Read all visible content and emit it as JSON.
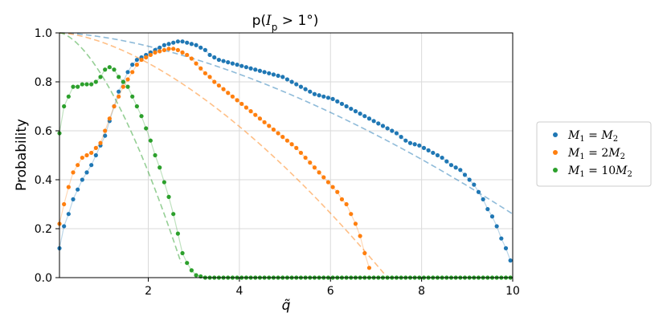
{
  "chart_data": {
    "type": "scatter",
    "title": "p(I_p > 1°)",
    "title_parts": {
      "main": "p(",
      "italic": "I",
      "sub": "p",
      "rest": " > 1°)"
    },
    "xlabel": "q̃",
    "ylabel": "Probability",
    "xlim": [
      0.05,
      10
    ],
    "ylim": [
      0,
      1
    ],
    "x_ticks": [
      2,
      4,
      6,
      8,
      10
    ],
    "y_ticks": [
      0.0,
      0.2,
      0.4,
      0.6,
      0.8,
      1.0
    ],
    "x_tick_labels": [
      "2",
      "4",
      "6",
      "8",
      "10"
    ],
    "y_tick_labels": [
      "0.0",
      "0.2",
      "0.4",
      "0.6",
      "0.8",
      "1.0"
    ],
    "grid": true,
    "legend_position": "outside-right",
    "series": [
      {
        "name": "M₁ = M₂",
        "legend_label": {
          "a": "M",
          "a_sub": "1",
          "eq": " = ",
          "b": "M",
          "b_sub": "2"
        },
        "color": "#1f77b4",
        "x": [
          0.05,
          0.15,
          0.25,
          0.35,
          0.45,
          0.55,
          0.65,
          0.75,
          0.85,
          0.95,
          1.05,
          1.15,
          1.25,
          1.35,
          1.45,
          1.55,
          1.65,
          1.75,
          1.85,
          1.95,
          2.05,
          2.15,
          2.25,
          2.35,
          2.45,
          2.55,
          2.65,
          2.75,
          2.85,
          2.95,
          3.05,
          3.15,
          3.25,
          3.35,
          3.45,
          3.55,
          3.65,
          3.75,
          3.85,
          3.95,
          4.05,
          4.15,
          4.25,
          4.35,
          4.45,
          4.55,
          4.65,
          4.75,
          4.85,
          4.95,
          5.05,
          5.15,
          5.25,
          5.35,
          5.45,
          5.55,
          5.65,
          5.75,
          5.85,
          5.95,
          6.05,
          6.15,
          6.25,
          6.35,
          6.45,
          6.55,
          6.65,
          6.75,
          6.85,
          6.95,
          7.05,
          7.15,
          7.25,
          7.35,
          7.45,
          7.55,
          7.65,
          7.75,
          7.85,
          7.95,
          8.05,
          8.15,
          8.25,
          8.35,
          8.45,
          8.55,
          8.65,
          8.75,
          8.85,
          8.95,
          9.05,
          9.15,
          9.25,
          9.35,
          9.45,
          9.55,
          9.65,
          9.75,
          9.85,
          9.95
        ],
        "y": [
          0.12,
          0.21,
          0.26,
          0.32,
          0.36,
          0.4,
          0.43,
          0.46,
          0.5,
          0.54,
          0.58,
          0.64,
          0.7,
          0.76,
          0.8,
          0.84,
          0.87,
          0.89,
          0.9,
          0.91,
          0.92,
          0.93,
          0.94,
          0.95,
          0.955,
          0.96,
          0.965,
          0.965,
          0.96,
          0.955,
          0.95,
          0.94,
          0.93,
          0.91,
          0.9,
          0.89,
          0.885,
          0.88,
          0.875,
          0.87,
          0.865,
          0.86,
          0.855,
          0.85,
          0.845,
          0.84,
          0.835,
          0.83,
          0.825,
          0.82,
          0.81,
          0.8,
          0.79,
          0.78,
          0.77,
          0.76,
          0.75,
          0.745,
          0.74,
          0.735,
          0.73,
          0.72,
          0.71,
          0.7,
          0.69,
          0.68,
          0.67,
          0.66,
          0.65,
          0.64,
          0.63,
          0.62,
          0.61,
          0.6,
          0.59,
          0.575,
          0.56,
          0.55,
          0.545,
          0.54,
          0.53,
          0.52,
          0.51,
          0.5,
          0.49,
          0.475,
          0.46,
          0.45,
          0.44,
          0.42,
          0.4,
          0.38,
          0.35,
          0.32,
          0.28,
          0.25,
          0.21,
          0.16,
          0.12,
          0.07
        ]
      },
      {
        "name": "M₁ = 2M₂",
        "legend_label": {
          "a": "M",
          "a_sub": "1",
          "eq": " = 2",
          "b": "M",
          "b_sub": "2"
        },
        "color": "#ff7f0e",
        "x": [
          0.05,
          0.15,
          0.25,
          0.35,
          0.45,
          0.55,
          0.65,
          0.75,
          0.85,
          0.95,
          1.05,
          1.15,
          1.25,
          1.35,
          1.45,
          1.55,
          1.65,
          1.75,
          1.85,
          1.95,
          2.05,
          2.15,
          2.25,
          2.35,
          2.45,
          2.55,
          2.65,
          2.75,
          2.85,
          2.95,
          3.05,
          3.15,
          3.25,
          3.35,
          3.45,
          3.55,
          3.65,
          3.75,
          3.85,
          3.95,
          4.05,
          4.15,
          4.25,
          4.35,
          4.45,
          4.55,
          4.65,
          4.75,
          4.85,
          4.95,
          5.05,
          5.15,
          5.25,
          5.35,
          5.45,
          5.55,
          5.65,
          5.75,
          5.85,
          5.95,
          6.05,
          6.15,
          6.25,
          6.35,
          6.45,
          6.55,
          6.65,
          6.75,
          6.85
        ],
        "y": [
          0.22,
          0.3,
          0.37,
          0.43,
          0.46,
          0.49,
          0.5,
          0.51,
          0.53,
          0.55,
          0.6,
          0.65,
          0.7,
          0.74,
          0.78,
          0.81,
          0.84,
          0.87,
          0.89,
          0.9,
          0.91,
          0.92,
          0.925,
          0.93,
          0.935,
          0.935,
          0.93,
          0.92,
          0.91,
          0.895,
          0.875,
          0.855,
          0.835,
          0.82,
          0.8,
          0.785,
          0.77,
          0.755,
          0.74,
          0.725,
          0.71,
          0.695,
          0.68,
          0.665,
          0.65,
          0.635,
          0.62,
          0.605,
          0.59,
          0.575,
          0.56,
          0.545,
          0.53,
          0.51,
          0.49,
          0.47,
          0.45,
          0.43,
          0.41,
          0.39,
          0.37,
          0.35,
          0.32,
          0.3,
          0.26,
          0.22,
          0.17,
          0.1,
          0.04
        ]
      },
      {
        "name": "M₁ = 10M₂",
        "legend_label": {
          "a": "M",
          "a_sub": "1",
          "eq": " = 10",
          "b": "M",
          "b_sub": "2"
        },
        "color": "#2ca02c",
        "x": [
          0.05,
          0.15,
          0.25,
          0.35,
          0.45,
          0.55,
          0.65,
          0.75,
          0.85,
          0.95,
          1.05,
          1.15,
          1.25,
          1.35,
          1.45,
          1.55,
          1.65,
          1.75,
          1.85,
          1.95,
          2.05,
          2.15,
          2.25,
          2.35,
          2.45,
          2.55,
          2.65,
          2.75,
          2.85,
          2.95,
          3.05,
          3.15,
          3.25,
          3.35,
          3.45,
          3.55,
          3.65,
          3.75,
          3.85,
          3.95,
          4.05,
          4.15,
          4.25,
          4.35,
          4.45,
          4.55,
          4.65,
          4.75,
          4.85,
          4.95,
          5.05,
          5.15,
          5.25,
          5.35,
          5.45,
          5.55,
          5.65,
          5.75,
          5.85,
          5.95,
          6.05,
          6.15,
          6.25,
          6.35,
          6.45,
          6.55,
          6.65,
          6.75,
          6.85,
          6.95,
          7.05,
          7.15,
          7.25,
          7.35,
          7.45,
          7.55,
          7.65,
          7.75,
          7.85,
          7.95,
          8.05,
          8.15,
          8.25,
          8.35,
          8.45,
          8.55,
          8.65,
          8.75,
          8.85,
          8.95,
          9.05,
          9.15,
          9.25,
          9.35,
          9.45,
          9.55,
          9.65,
          9.75,
          9.85,
          9.95
        ],
        "y": [
          0.59,
          0.7,
          0.74,
          0.78,
          0.78,
          0.79,
          0.79,
          0.79,
          0.8,
          0.82,
          0.85,
          0.86,
          0.85,
          0.82,
          0.8,
          0.78,
          0.74,
          0.7,
          0.66,
          0.61,
          0.56,
          0.5,
          0.45,
          0.39,
          0.33,
          0.26,
          0.18,
          0.1,
          0.06,
          0.03,
          0.01,
          0.005,
          0,
          0,
          0,
          0,
          0,
          0,
          0,
          0,
          0,
          0,
          0,
          0,
          0,
          0,
          0,
          0,
          0,
          0,
          0,
          0,
          0,
          0,
          0,
          0,
          0,
          0,
          0,
          0,
          0,
          0,
          0,
          0,
          0,
          0,
          0,
          0,
          0,
          0,
          0,
          0,
          0,
          0,
          0,
          0,
          0,
          0,
          0,
          0,
          0,
          0,
          0,
          0,
          0,
          0,
          0,
          0,
          0,
          0,
          0,
          0,
          0,
          0,
          0,
          0,
          0,
          0,
          0,
          0
        ]
      }
    ],
    "reference_curves": [
      {
        "color": "#1f77b4",
        "x0": 0.05,
        "x_end": 10.0,
        "y_end": 0.26
      },
      {
        "color": "#ff7f0e",
        "x0": 0.05,
        "x_end": 7.25,
        "y_end": 0.0
      },
      {
        "color": "#2ca02c",
        "x0": 0.05,
        "x_end": 2.72,
        "y_end": 0.06
      }
    ]
  }
}
